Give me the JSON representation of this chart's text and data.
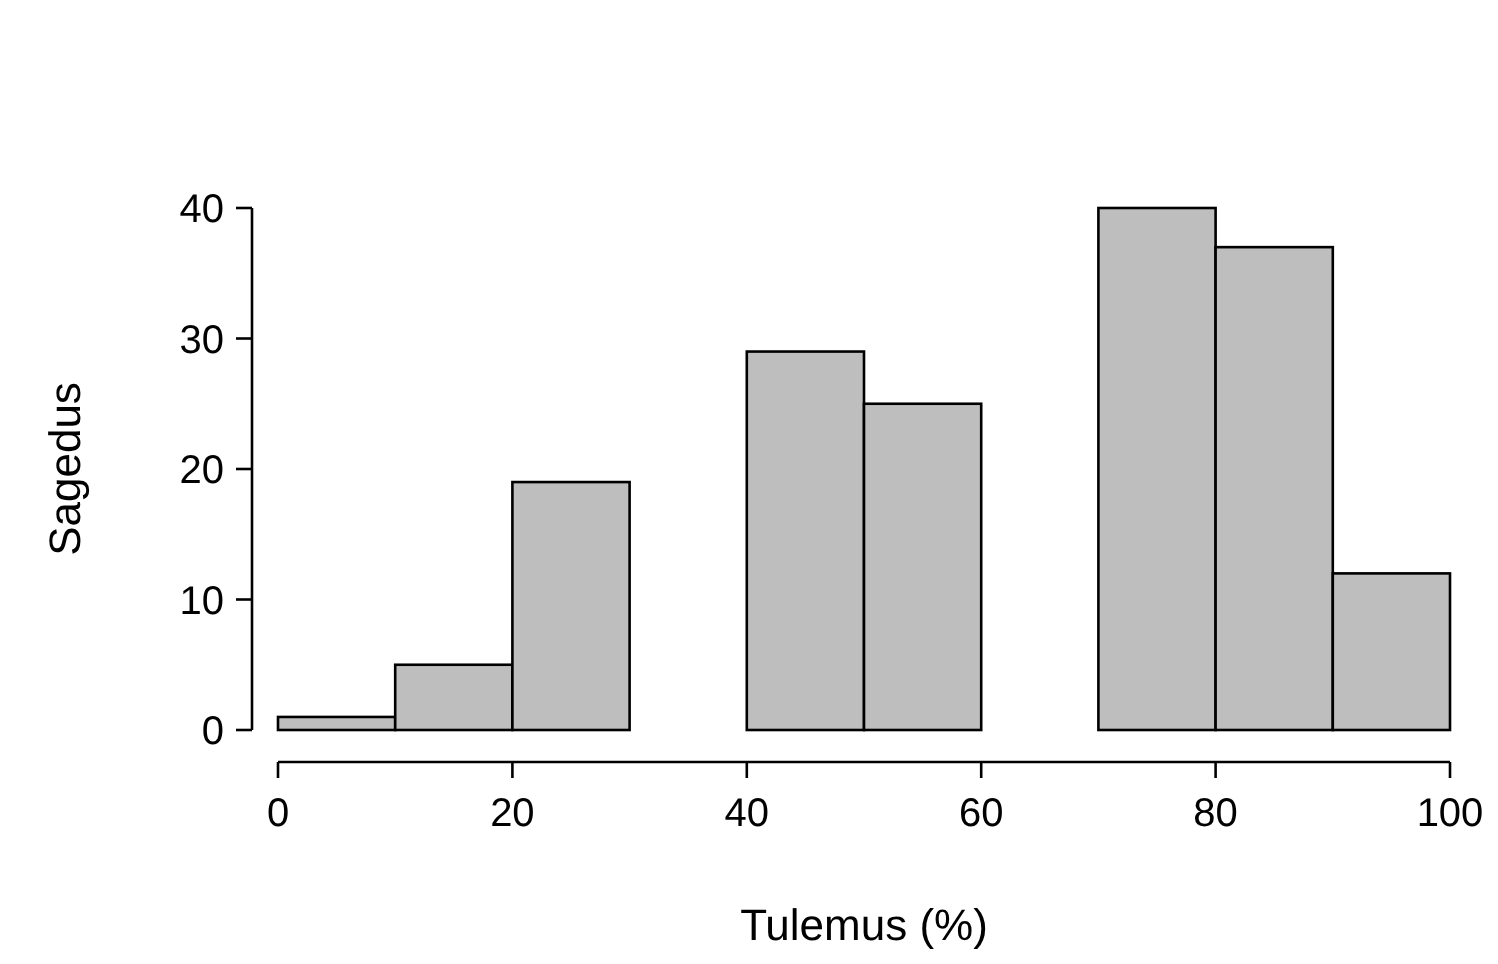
{
  "chart_data": {
    "type": "histogram",
    "xlabel": "Tulemus (%)",
    "ylabel": "Sagedus",
    "bins": [
      0,
      10,
      20,
      30,
      40,
      50,
      60,
      70,
      80,
      90,
      100
    ],
    "values": [
      1,
      5,
      19,
      0,
      29,
      25,
      0,
      40,
      37,
      12
    ],
    "color": "#bebebe",
    "xlim": [
      0,
      100
    ],
    "xticks": [
      0,
      20,
      40,
      60,
      80,
      100
    ],
    "ylim": [
      0,
      40
    ],
    "yticks": [
      0,
      10,
      20,
      30,
      40
    ],
    "grid": false
  }
}
